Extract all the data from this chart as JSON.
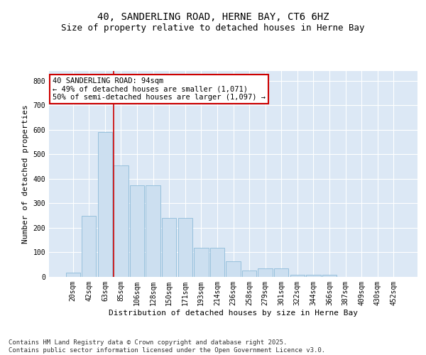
{
  "title_line1": "40, SANDERLING ROAD, HERNE BAY, CT6 6HZ",
  "title_line2": "Size of property relative to detached houses in Herne Bay",
  "xlabel": "Distribution of detached houses by size in Herne Bay",
  "ylabel": "Number of detached properties",
  "categories": [
    "20sqm",
    "42sqm",
    "63sqm",
    "85sqm",
    "106sqm",
    "128sqm",
    "150sqm",
    "171sqm",
    "193sqm",
    "214sqm",
    "236sqm",
    "258sqm",
    "279sqm",
    "301sqm",
    "322sqm",
    "344sqm",
    "366sqm",
    "387sqm",
    "409sqm",
    "430sqm",
    "452sqm"
  ],
  "values": [
    18,
    250,
    590,
    455,
    375,
    375,
    240,
    240,
    120,
    120,
    65,
    25,
    35,
    35,
    10,
    10,
    8,
    0,
    0,
    0,
    0
  ],
  "bar_color": "#ccdff0",
  "bar_edge_color": "#7fb3d3",
  "vline_color": "#cc0000",
  "annotation_text": "40 SANDERLING ROAD: 94sqm\n← 49% of detached houses are smaller (1,071)\n50% of semi-detached houses are larger (1,097) →",
  "annotation_box_color": "#ffffff",
  "annotation_box_edge": "#cc0000",
  "ylim": [
    0,
    840
  ],
  "yticks": [
    0,
    100,
    200,
    300,
    400,
    500,
    600,
    700,
    800
  ],
  "background_color": "#dce8f5",
  "footer_text": "Contains HM Land Registry data © Crown copyright and database right 2025.\nContains public sector information licensed under the Open Government Licence v3.0.",
  "title_fontsize": 10,
  "subtitle_fontsize": 9,
  "axis_label_fontsize": 8,
  "tick_fontsize": 7,
  "annotation_fontsize": 7.5,
  "footer_fontsize": 6.5
}
